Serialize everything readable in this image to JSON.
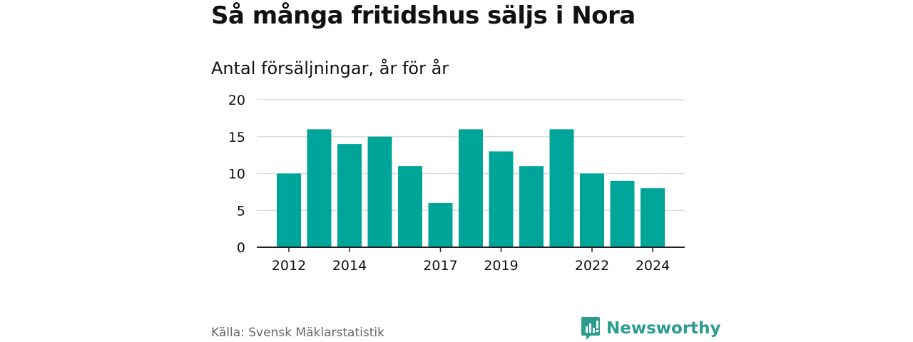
{
  "title": "Så många fritidshus säljs i Nora",
  "subtitle": "Antal försäljningar, år för år",
  "source": "Källa: Svensk Mäklarstatistik",
  "brand": {
    "name": "Newsworthy",
    "icon": "newsworthy-logo-icon"
  },
  "colors": {
    "bar": "#00A599",
    "brand": "#2A9D8F",
    "grid": "#dddddd",
    "axis": "#222222",
    "text": "#111111",
    "muted": "#666666"
  },
  "chart_data": {
    "type": "bar",
    "categories": [
      "2012",
      "2013",
      "2014",
      "2015",
      "2016",
      "2017",
      "2018",
      "2019",
      "2020",
      "2021",
      "2022",
      "2023",
      "2024"
    ],
    "values": [
      10,
      16,
      14,
      15,
      11,
      6,
      16,
      13,
      11,
      16,
      10,
      9,
      8
    ],
    "x_tick_labels": [
      "2012",
      "2014",
      "2017",
      "2019",
      "2022",
      "2024"
    ],
    "y_ticks": [
      0,
      5,
      10,
      15,
      20
    ],
    "ylim": [
      0,
      20
    ],
    "grid": true,
    "xlabel": "",
    "ylabel": ""
  }
}
